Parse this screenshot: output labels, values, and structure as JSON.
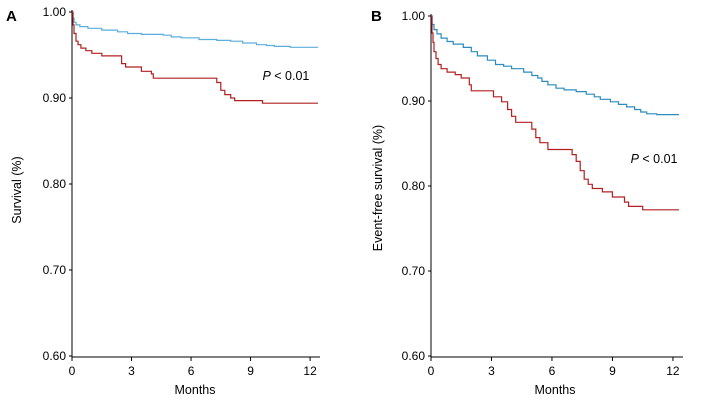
{
  "chart_data": [
    {
      "panel": "A",
      "type": "line",
      "xlabel": "Months",
      "ylabel": "Survival (%)",
      "xlim": [
        0,
        12.5
      ],
      "ylim": [
        0.6,
        1.0
      ],
      "xticks": [
        0,
        3,
        6,
        9,
        12
      ],
      "xtick_labels": [
        "0",
        "3",
        "6",
        "9",
        "12"
      ],
      "yticks": [
        0.6,
        0.7,
        0.8,
        0.9,
        1.0
      ],
      "ytick_labels": [
        "0.60",
        "0.70",
        "0.80",
        "0.90",
        "1.00"
      ],
      "annotation": {
        "p": "P",
        "rest": " < 0.01",
        "x": 9.6,
        "y": 0.921
      },
      "series": [
        {
          "name": "blue",
          "color": "#5aaede",
          "points": [
            [
              0,
              1.0
            ],
            [
              0.05,
              0.993
            ],
            [
              0.1,
              0.988
            ],
            [
              0.2,
              0.985
            ],
            [
              0.4,
              0.983
            ],
            [
              0.8,
              0.981
            ],
            [
              1.5,
              0.979
            ],
            [
              2.3,
              0.977
            ],
            [
              2.8,
              0.975
            ],
            [
              3.5,
              0.974
            ],
            [
              4.6,
              0.973
            ],
            [
              5.0,
              0.971
            ],
            [
              5.5,
              0.97
            ],
            [
              6.4,
              0.968
            ],
            [
              7.3,
              0.967
            ],
            [
              8.0,
              0.966
            ],
            [
              8.6,
              0.964
            ],
            [
              9.3,
              0.962
            ],
            [
              9.8,
              0.961
            ],
            [
              10.2,
              0.96
            ],
            [
              11.0,
              0.959
            ],
            [
              12.4,
              0.959
            ]
          ]
        },
        {
          "name": "red",
          "color": "#b22020",
          "points": [
            [
              0,
              1.0
            ],
            [
              0.05,
              0.985
            ],
            [
              0.1,
              0.975
            ],
            [
              0.2,
              0.966
            ],
            [
              0.3,
              0.962
            ],
            [
              0.45,
              0.958
            ],
            [
              0.7,
              0.955
            ],
            [
              1.0,
              0.952
            ],
            [
              1.5,
              0.949
            ],
            [
              2.5,
              0.94
            ],
            [
              2.7,
              0.936
            ],
            [
              3.5,
              0.931
            ],
            [
              4.0,
              0.928
            ],
            [
              4.1,
              0.923
            ],
            [
              7.3,
              0.918
            ],
            [
              7.5,
              0.909
            ],
            [
              7.7,
              0.904
            ],
            [
              8.0,
              0.9
            ],
            [
              8.2,
              0.897
            ],
            [
              9.6,
              0.894
            ],
            [
              12.4,
              0.894
            ]
          ]
        }
      ]
    },
    {
      "panel": "B",
      "type": "line",
      "xlabel": "Months",
      "ylabel": "Event-free survival (%)",
      "xlim": [
        0,
        12.5
      ],
      "ylim": [
        0.6,
        1.0
      ],
      "xticks": [
        0,
        3,
        6,
        9,
        12
      ],
      "xtick_labels": [
        "0",
        "3",
        "6",
        "9",
        "12"
      ],
      "yticks": [
        0.6,
        0.7,
        0.8,
        0.9,
        1.0
      ],
      "ytick_labels": [
        "0.60",
        "0.70",
        "0.80",
        "0.90",
        "1.00"
      ],
      "annotation": {
        "p": "P",
        "rest": " < 0.01",
        "x": 9.9,
        "y": 0.827
      },
      "series": [
        {
          "name": "blue",
          "color": "#2b8cbe",
          "points": [
            [
              0,
              1.0
            ],
            [
              0.05,
              0.99
            ],
            [
              0.15,
              0.984
            ],
            [
              0.3,
              0.979
            ],
            [
              0.5,
              0.974
            ],
            [
              0.8,
              0.97
            ],
            [
              1.1,
              0.967
            ],
            [
              1.6,
              0.963
            ],
            [
              2.0,
              0.958
            ],
            [
              2.3,
              0.953
            ],
            [
              2.8,
              0.948
            ],
            [
              3.2,
              0.943
            ],
            [
              3.6,
              0.941
            ],
            [
              4.0,
              0.938
            ],
            [
              4.6,
              0.934
            ],
            [
              5.0,
              0.93
            ],
            [
              5.3,
              0.927
            ],
            [
              5.5,
              0.923
            ],
            [
              5.8,
              0.919
            ],
            [
              6.2,
              0.915
            ],
            [
              6.6,
              0.913
            ],
            [
              7.2,
              0.911
            ],
            [
              7.7,
              0.908
            ],
            [
              8.1,
              0.905
            ],
            [
              8.4,
              0.902
            ],
            [
              8.9,
              0.899
            ],
            [
              9.3,
              0.896
            ],
            [
              9.7,
              0.893
            ],
            [
              10.1,
              0.89
            ],
            [
              10.4,
              0.887
            ],
            [
              10.7,
              0.885
            ],
            [
              11.2,
              0.884
            ],
            [
              12.3,
              0.884
            ]
          ]
        },
        {
          "name": "red",
          "color": "#b22020",
          "points": [
            [
              0,
              1.0
            ],
            [
              0.05,
              0.98
            ],
            [
              0.1,
              0.969
            ],
            [
              0.15,
              0.958
            ],
            [
              0.25,
              0.95
            ],
            [
              0.35,
              0.943
            ],
            [
              0.5,
              0.938
            ],
            [
              0.8,
              0.934
            ],
            [
              1.2,
              0.931
            ],
            [
              1.5,
              0.927
            ],
            [
              1.9,
              0.919
            ],
            [
              2.0,
              0.912
            ],
            [
              3.1,
              0.905
            ],
            [
              3.5,
              0.899
            ],
            [
              3.8,
              0.89
            ],
            [
              4.0,
              0.882
            ],
            [
              4.2,
              0.875
            ],
            [
              5.0,
              0.867
            ],
            [
              5.2,
              0.857
            ],
            [
              5.4,
              0.851
            ],
            [
              5.8,
              0.843
            ],
            [
              7.0,
              0.837
            ],
            [
              7.2,
              0.829
            ],
            [
              7.4,
              0.818
            ],
            [
              7.6,
              0.808
            ],
            [
              7.8,
              0.802
            ],
            [
              8.0,
              0.797
            ],
            [
              8.5,
              0.793
            ],
            [
              9.0,
              0.787
            ],
            [
              9.6,
              0.781
            ],
            [
              9.8,
              0.776
            ],
            [
              10.5,
              0.772
            ],
            [
              12.3,
              0.772
            ]
          ]
        }
      ]
    }
  ]
}
